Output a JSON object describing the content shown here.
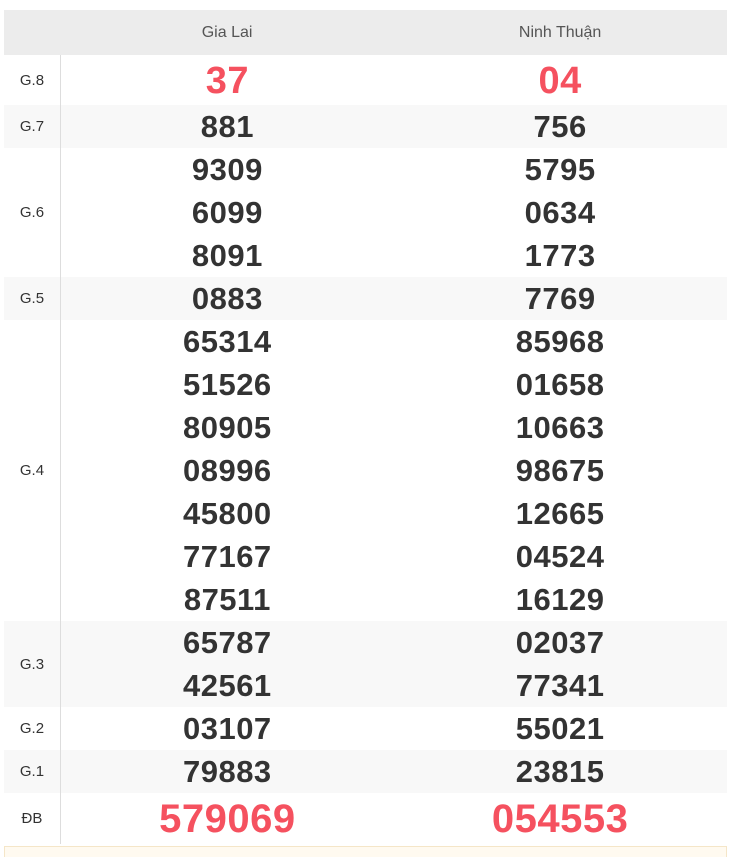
{
  "provinces": [
    "Gia Lai",
    "Ninh Thuận"
  ],
  "colors": {
    "highlight": "#f5515f",
    "text": "#333333",
    "header_bg": "#ececec"
  },
  "prizes": [
    {
      "label": "G.8",
      "values": [
        [
          "37"
        ],
        [
          "04"
        ]
      ],
      "highlight": true
    },
    {
      "label": "G.7",
      "values": [
        [
          "881"
        ],
        [
          "756"
        ]
      ]
    },
    {
      "label": "G.6",
      "values": [
        [
          "9309",
          "6099",
          "8091"
        ],
        [
          "5795",
          "0634",
          "1773"
        ]
      ]
    },
    {
      "label": "G.5",
      "values": [
        [
          "0883"
        ],
        [
          "7769"
        ]
      ]
    },
    {
      "label": "G.4",
      "values": [
        [
          "65314",
          "51526",
          "80905",
          "08996",
          "45800",
          "77167",
          "87511"
        ],
        [
          "85968",
          "01658",
          "10663",
          "98675",
          "12665",
          "04524",
          "16129"
        ]
      ]
    },
    {
      "label": "G.3",
      "values": [
        [
          "65787",
          "42561"
        ],
        [
          "02037",
          "77341"
        ]
      ]
    },
    {
      "label": "G.2",
      "values": [
        [
          "03107"
        ],
        [
          "55021"
        ]
      ]
    },
    {
      "label": "G.1",
      "values": [
        [
          "79883"
        ],
        [
          "23815"
        ]
      ]
    },
    {
      "label": "ĐB",
      "values": [
        [
          "579069"
        ],
        [
          "054553"
        ]
      ],
      "highlight": true
    }
  ]
}
